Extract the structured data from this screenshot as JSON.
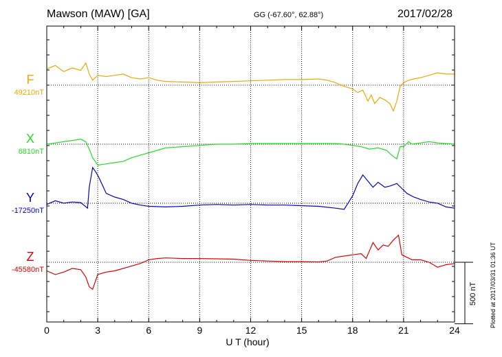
{
  "header": {
    "station": "Mawson (MAW)  [GA]",
    "coords": "GG (-67.60°,  62.88°)",
    "date": "2017/02/28"
  },
  "plotted_note": "Plotted at 2017/03/31 01:36 UT",
  "colors": {
    "F": "#f0a800",
    "X": "#22dd22",
    "Y": "#0000cc",
    "Z": "#e00000"
  },
  "chart_data": {
    "type": "line",
    "xlabel": "U T (hour)",
    "xlim": [
      0,
      24
    ],
    "xticks": [
      "0",
      "3",
      "6",
      "9",
      "12",
      "15",
      "18",
      "21",
      "24"
    ],
    "scale_bar": "500 nT",
    "series": [
      {
        "name": "F",
        "baseline": "49210nT",
        "baseline_value": 49210,
        "x": [
          0,
          0.5,
          1,
          1.5,
          2,
          2.3,
          2.5,
          2.7,
          3,
          3.5,
          4,
          4.5,
          5,
          5.5,
          6,
          6.5,
          7,
          8,
          9,
          10,
          11,
          12,
          13,
          14,
          15,
          16,
          16.5,
          17,
          17.5,
          18,
          18.3,
          18.6,
          18.9,
          19.1,
          19.3,
          19.6,
          19.9,
          20.2,
          20.4,
          20.6,
          20.8,
          21,
          21.3,
          21.6,
          22,
          22.5,
          23,
          23.5,
          24
        ],
        "values": [
          49340,
          49370,
          49320,
          49350,
          49330,
          49390,
          49300,
          49250,
          49290,
          49280,
          49290,
          49300,
          49270,
          49260,
          49270,
          49250,
          49240,
          49235,
          49230,
          49235,
          49240,
          49245,
          49250,
          49255,
          49255,
          49260,
          49250,
          49230,
          49200,
          49180,
          49150,
          49170,
          49080,
          49130,
          49060,
          49110,
          49090,
          49060,
          49000,
          49080,
          49200,
          49230,
          49250,
          49260,
          49270,
          49290,
          49310,
          49300,
          49300
        ]
      },
      {
        "name": "X",
        "baseline": "6810nT",
        "baseline_value": 6810,
        "x": [
          0,
          0.5,
          1,
          1.5,
          2,
          2.3,
          2.5,
          2.7,
          3,
          3.5,
          4,
          4.5,
          5,
          5.5,
          6,
          6.5,
          7,
          8,
          9,
          10,
          11,
          12,
          13,
          14,
          15,
          16,
          17,
          17.5,
          18,
          18.5,
          19,
          19.5,
          20,
          20.3,
          20.6,
          20.8,
          21,
          21.3,
          21.5,
          22,
          22.5,
          23,
          23.5,
          24
        ],
        "values": [
          6810,
          6820,
          6830,
          6840,
          6850,
          6830,
          6770,
          6700,
          6640,
          6650,
          6660,
          6670,
          6700,
          6720,
          6740,
          6760,
          6780,
          6790,
          6800,
          6810,
          6810,
          6815,
          6815,
          6815,
          6815,
          6815,
          6815,
          6810,
          6800,
          6790,
          6770,
          6780,
          6760,
          6720,
          6690,
          6790,
          6790,
          6830,
          6810,
          6820,
          6830,
          6820,
          6815,
          6810
        ]
      },
      {
        "name": "Y",
        "baseline": "-17250nT",
        "baseline_value": -17250,
        "x": [
          0,
          0.5,
          1,
          1.5,
          2,
          2.4,
          2.5,
          2.7,
          2.9,
          3.1,
          3.5,
          4,
          4.5,
          5,
          5.5,
          6,
          7,
          8,
          9,
          10,
          11,
          12,
          13,
          14,
          15,
          16,
          17,
          17.5,
          18,
          18.3,
          18.6,
          18.9,
          19.2,
          19.5,
          19.9,
          20.2,
          20.6,
          20.9,
          21.2,
          21.6,
          22,
          22.5,
          23,
          23.5,
          24
        ],
        "values": [
          -17260,
          -17230,
          -17250,
          -17240,
          -17245,
          -17290,
          -17120,
          -16960,
          -17000,
          -17050,
          -17170,
          -17200,
          -17220,
          -17250,
          -17265,
          -17275,
          -17280,
          -17275,
          -17265,
          -17260,
          -17265,
          -17260,
          -17265,
          -17265,
          -17270,
          -17275,
          -17290,
          -17300,
          -17190,
          -17090,
          -17020,
          -17070,
          -17120,
          -17080,
          -17120,
          -17110,
          -17090,
          -17130,
          -17170,
          -17200,
          -17220,
          -17240,
          -17250,
          -17280,
          -17290
        ]
      },
      {
        "name": "Z",
        "baseline": "-45580nT",
        "baseline_value": -45580,
        "x": [
          0,
          0.5,
          1,
          1.5,
          2,
          2.3,
          2.5,
          2.7,
          3,
          3.5,
          4,
          4.5,
          5,
          5.5,
          6,
          6.5,
          7,
          8,
          9,
          10,
          11,
          12,
          13,
          14,
          15,
          16,
          16.5,
          17,
          17.5,
          18,
          18.5,
          18.8,
          19.2,
          19.5,
          19.8,
          20.1,
          20.4,
          20.7,
          20.9,
          21.2,
          21.5,
          22,
          22.5,
          23,
          23.5,
          24
        ],
        "values": [
          -45650,
          -45680,
          -45660,
          -45630,
          -45640,
          -45700,
          -45780,
          -45800,
          -45680,
          -45660,
          -45650,
          -45630,
          -45610,
          -45590,
          -45560,
          -45550,
          -45545,
          -45550,
          -45550,
          -45552,
          -45555,
          -45565,
          -45570,
          -45575,
          -45575,
          -45578,
          -45570,
          -45540,
          -45530,
          -45520,
          -45510,
          -45550,
          -45420,
          -45480,
          -45440,
          -45450,
          -45400,
          -45360,
          -45520,
          -45540,
          -45560,
          -45560,
          -45580,
          -45620,
          -45600,
          -45590
        ]
      }
    ]
  }
}
